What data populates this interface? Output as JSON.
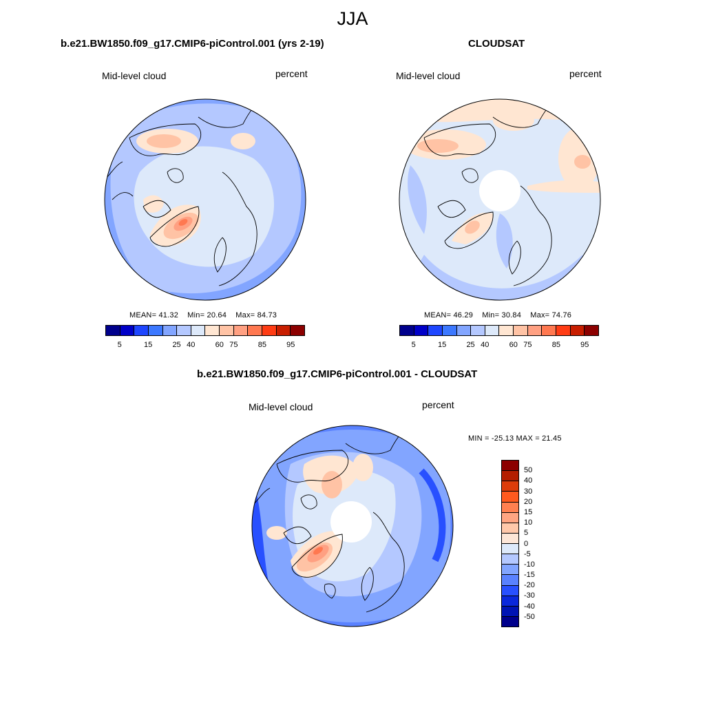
{
  "main_title": "JJA",
  "panels": [
    {
      "title": "b.e21.BW1850.f09_g17.CMIP6-piControl.001 (yrs 2-19)",
      "left_label": "Mid-level cloud",
      "right_label": "percent",
      "stats": {
        "mean_label": "MEAN=",
        "mean": "41.32",
        "min_label": "Min=",
        "min": "20.64",
        "max_label": "Max=",
        "max": "84.73"
      }
    },
    {
      "title": "CLOUDSAT",
      "left_label": "Mid-level cloud",
      "right_label": "percent",
      "stats": {
        "mean_label": "MEAN=",
        "mean": "46.29",
        "min_label": "Min=",
        "min": "30.84",
        "max_label": "Max=",
        "max": "74.76"
      }
    },
    {
      "title": "b.e21.BW1850.f09_g17.CMIP6-piControl.001 - CLOUDSAT",
      "left_label": "Mid-level cloud",
      "right_label": "percent",
      "stats_text": "MIN = -25.13 MAX =  21.45"
    }
  ],
  "colorbar_abs": {
    "tick_labels": [
      "5",
      "15",
      "25",
      "40",
      "60",
      "75",
      "85",
      "95"
    ],
    "colors": [
      "#00008c",
      "#0000c8",
      "#1e46ff",
      "#3c78ff",
      "#82a5ff",
      "#b4c8ff",
      "#dde9fa",
      "#ffe6d2",
      "#ffc3a5",
      "#ffa082",
      "#ff7850",
      "#ff3c14",
      "#c81e00",
      "#8c0000"
    ]
  },
  "colorbar_diff": {
    "tick_labels": [
      "50",
      "40",
      "30",
      "20",
      "15",
      "10",
      "5",
      "0",
      "-5",
      "-10",
      "-15",
      "-20",
      "-30",
      "-40",
      "-50"
    ],
    "colors": [
      "#8c0000",
      "#b41e00",
      "#dc3c0a",
      "#ff5a1e",
      "#ff8050",
      "#ffa582",
      "#ffc8aa",
      "#fde6d7",
      "#dde9fa",
      "#b4c8ff",
      "#82a5ff",
      "#5a82ff",
      "#2850ff",
      "#0a28dc",
      "#0014b4",
      "#00008c"
    ]
  }
}
